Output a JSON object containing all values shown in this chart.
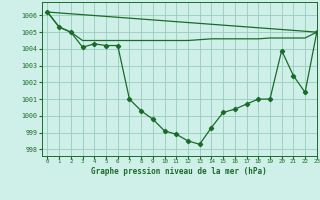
{
  "title": "Graphe pression niveau de la mer (hPa)",
  "background_color": "#cff0e8",
  "plot_bg_color": "#cff0e8",
  "grid_color": "#99ccbb",
  "line_color": "#1a6b2a",
  "xlim": [
    -0.5,
    23
  ],
  "ylim": [
    997.6,
    1006.8
  ],
  "xticks": [
    0,
    1,
    2,
    3,
    4,
    5,
    6,
    7,
    8,
    9,
    10,
    11,
    12,
    13,
    14,
    15,
    16,
    17,
    18,
    19,
    20,
    21,
    22,
    23
  ],
  "yticks": [
    998,
    999,
    1000,
    1001,
    1002,
    1003,
    1004,
    1005,
    1006
  ],
  "series_main": {
    "x": [
      0,
      1,
      2,
      3,
      4,
      5,
      6,
      7,
      8,
      9,
      10,
      11,
      12,
      13,
      14,
      15,
      16,
      17,
      18,
      19,
      20,
      21,
      22,
      23
    ],
    "y": [
      1006.2,
      1005.3,
      1005.0,
      1004.1,
      1004.3,
      1004.2,
      1004.2,
      1001.0,
      1000.3,
      999.8,
      999.1,
      998.9,
      998.5,
      998.3,
      999.3,
      1000.2,
      1000.4,
      1000.7,
      1001.0,
      1001.0,
      1003.9,
      1002.4,
      1001.4,
      1005.0
    ]
  },
  "series_flat": {
    "x": [
      0,
      1,
      2,
      3,
      4,
      5,
      6,
      7,
      8,
      9,
      10,
      11,
      12,
      13,
      14,
      15,
      16,
      17,
      18,
      19,
      20,
      21,
      22,
      23
    ],
    "y": [
      1006.2,
      1005.3,
      1005.0,
      1004.5,
      1004.5,
      1004.5,
      1004.5,
      1004.5,
      1004.5,
      1004.5,
      1004.5,
      1004.5,
      1004.5,
      1004.55,
      1004.6,
      1004.6,
      1004.6,
      1004.6,
      1004.6,
      1004.65,
      1004.65,
      1004.65,
      1004.65,
      1005.0
    ]
  },
  "series_diag": {
    "x": [
      0,
      23
    ],
    "y": [
      1006.2,
      1005.0
    ]
  }
}
